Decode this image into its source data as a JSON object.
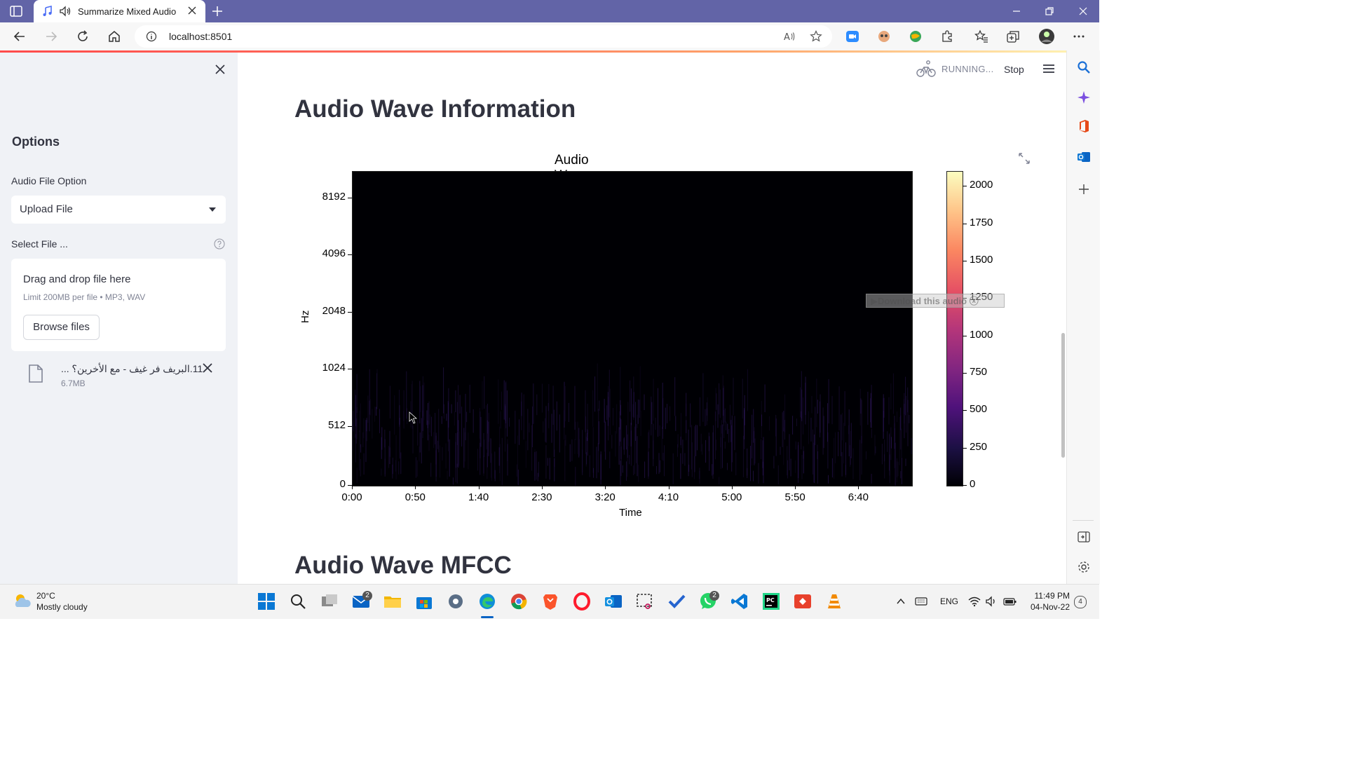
{
  "browser": {
    "tab_title": "Summarize Mixed Audio",
    "url": "localhost:8501"
  },
  "sidebar": {
    "heading": "Options",
    "audio_option_label": "Audio File Option",
    "audio_option_value": "Upload File",
    "select_file_label": "Select File ...",
    "dropzone_title": "Drag and drop file here",
    "dropzone_limit": "Limit 200MB per file • MP3, WAV",
    "browse_label": "Browse files",
    "file_name": "11.البريف فر غيف - مع الأخرين؟ ...",
    "file_size": "6.7MB"
  },
  "main": {
    "status": "RUNNING...",
    "stop_label": "Stop",
    "heading1": "Audio Wave Information",
    "heading2": "Audio Wave MFCC",
    "overlay_text": "▶Download this audio  ⓧ"
  },
  "chart_data": {
    "type": "heatmap",
    "title": "Audio Wave Information",
    "xlabel": "Time",
    "ylabel": "Hz",
    "x_ticks": [
      "0:00",
      "0:50",
      "1:40",
      "2:30",
      "3:20",
      "4:10",
      "5:00",
      "5:50",
      "6:40"
    ],
    "y_ticks": [
      "0",
      "512",
      "1024",
      "2048",
      "4096",
      "8192"
    ],
    "y_scale": "log",
    "colormap": "magma",
    "colorbar_ticks": [
      "0",
      "250",
      "500",
      "750",
      "1000",
      "1250",
      "1500",
      "1750",
      "2000"
    ],
    "colorbar_range": [
      0,
      2100
    ]
  },
  "taskbar": {
    "temperature": "20°C",
    "condition": "Mostly cloudy",
    "lang": "ENG",
    "time": "11:49 PM",
    "date": "04-Nov-22",
    "mail_badge": "2",
    "whatsapp_badge": "2",
    "notif_count": "4"
  },
  "colors": {
    "title_bar": "#6264a7",
    "sidebar_bg": "#f0f2f6",
    "plot_bg": "#000004"
  }
}
